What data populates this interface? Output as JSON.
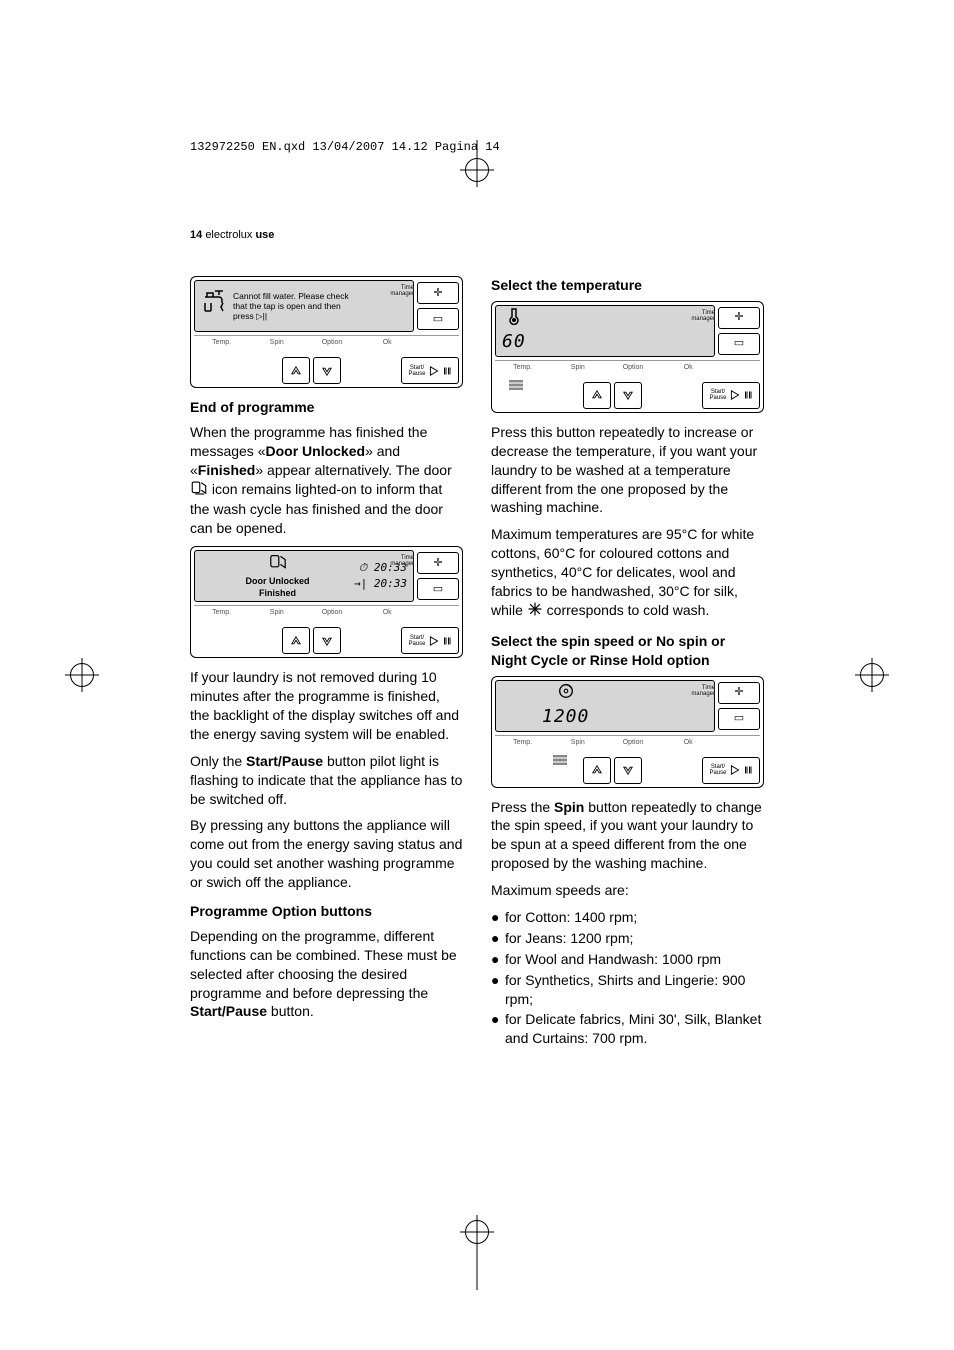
{
  "print_header": "132972250 EN.qxd  13/04/2007  14.12  Pagina  14",
  "page_header_prefix": "14",
  "page_header_brand": "electrolux",
  "page_header_section": "use",
  "panel_common": {
    "labels": {
      "temp": "Temp.",
      "spin": "Spin",
      "option": "Option",
      "ok": "Ok"
    },
    "time_manager": "Time\nmanager",
    "start_pause": "Start/\nPause",
    "side_plus": "✛",
    "side_minus": "▭",
    "corners_color": "#d6d6d6"
  },
  "panel_error": {
    "message": "Cannot fill water. Please check\nthat the tap is open and then\npress ▷||"
  },
  "panel_finished": {
    "line1": "Door Unlocked",
    "line2": "Finished",
    "time1": "20:33",
    "time2": "20:33"
  },
  "panel_temp": {
    "value": "60"
  },
  "panel_spin": {
    "value": "1200"
  },
  "left": {
    "h1": "End of programme",
    "p1a": "When the programme has finished the messages «",
    "p1b": "Door Unlocked",
    "p1c": "» and «",
    "p1d": "Finished",
    "p1e": "» appear alternatively. The door ",
    "p1f": " icon remains lighted-on to inform that the wash cycle has finished and the door can be opened.",
    "p2": "If your laundry is not removed during 10 minutes after the programme is finished, the backlight of the display switches off and the energy saving system will be enabled.",
    "p3a": "Only the ",
    "p3b": "Start/Pause",
    "p3c": " button pilot light is flashing to indicate that the appliance has to be switched off.",
    "p4": "By pressing any buttons the appliance will come out from the energy saving status and you could set another washing programme or swich off the appliance.",
    "h2": "Programme Option buttons",
    "p5a": "Depending on the programme, different functions can be combined. These must be selected after choosing the desired programme and before depressing the ",
    "p5b": "Start/Pause",
    "p5c": " button."
  },
  "right": {
    "h1": "Select the temperature",
    "p1": "Press this button repeatedly to increase or decrease the temperature, if you want your laundry to be washed at a temperature different from the one proposed by the washing machine.",
    "p2a": "Maximum temperatures are 95°C for white cottons, 60°C for coloured cottons and synthetics, 40°C for delicates, wool and fabrics to be handwashed, 30°C for silk, while ",
    "p2b": " corresponds to cold wash.",
    "h2": "Select the spin speed or No spin or Night Cycle or Rinse Hold option",
    "p3a": "Press the ",
    "p3b": "Spin",
    "p3c": " button repeatedly to change the spin speed, if you want your laundry to be spun at a speed different from the one proposed by the washing machine.",
    "p4": "Maximum speeds are:",
    "bullets": [
      "for Cotton: 1400 rpm;",
      "for Jeans: 1200 rpm;",
      "for Wool and Handwash: 1000 rpm",
      "for Synthetics, Shirts and Lingerie: 900 rpm;",
      "for Delicate fabrics, Mini 30', Silk, Blanket and Curtains: 700 rpm."
    ]
  },
  "colors": {
    "text": "#000000",
    "screen_bg": "#d6d6d6",
    "label_muted": "#555555"
  }
}
